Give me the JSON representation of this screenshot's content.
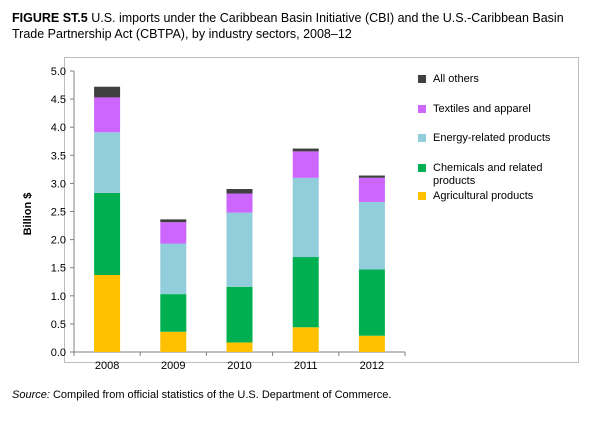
{
  "figure": {
    "label": "FIGURE ST.5",
    "title": "U.S. imports under the Caribbean Basin Initiative (CBI) and the U.S.-Caribbean Basin Trade Partnership Act (CBTPA), by industry sectors, 2008–12",
    "source_label": "Source:",
    "source_text": "Compiled from official statistics of the U.S. Department of Commerce."
  },
  "chart_data": {
    "type": "bar",
    "stacked": true,
    "categories": [
      "2008",
      "2009",
      "2010",
      "2011",
      "2012"
    ],
    "ylabel": "Billion $",
    "xlabel": "",
    "ylim": [
      0,
      5.0
    ],
    "yticks": [
      "0.0",
      "0.5",
      "1.0",
      "1.5",
      "2.0",
      "2.5",
      "3.0",
      "3.5",
      "4.0",
      "4.5",
      "5.0"
    ],
    "grid": false,
    "legend_position": "right",
    "series": [
      {
        "name": "Agricultural products",
        "color": "#ffc000",
        "values": [
          1.37,
          0.36,
          0.17,
          0.44,
          0.29
        ]
      },
      {
        "name": "Chemicals and related products",
        "color": "#00b050",
        "values": [
          1.46,
          0.67,
          0.99,
          1.25,
          1.18
        ]
      },
      {
        "name": "Energy-related products",
        "color": "#92cddc",
        "values": [
          1.08,
          0.9,
          1.32,
          1.41,
          1.2
        ]
      },
      {
        "name": "Textiles and apparel",
        "color": "#cc66ff",
        "values": [
          0.62,
          0.38,
          0.34,
          0.47,
          0.43
        ]
      },
      {
        "name": "All others",
        "color": "#404040",
        "values": [
          0.19,
          0.05,
          0.08,
          0.05,
          0.04
        ]
      }
    ]
  }
}
